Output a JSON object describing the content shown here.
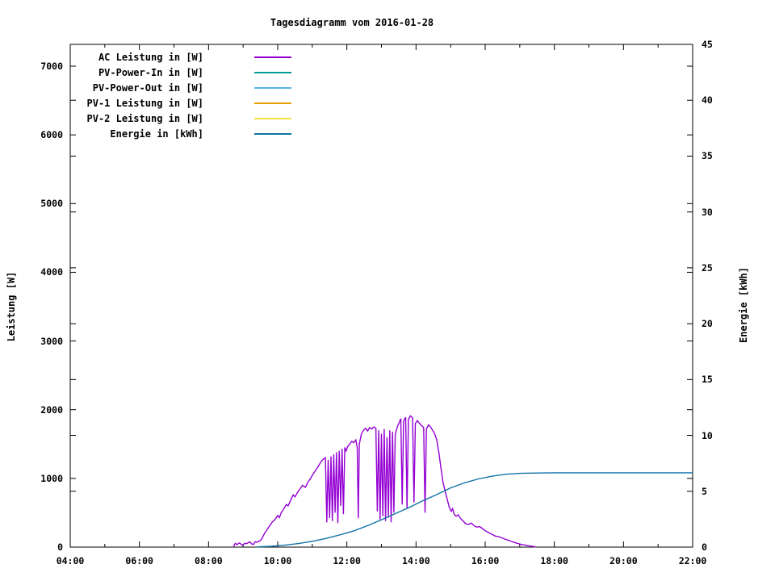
{
  "title": "Tagesdiagramm vom 2016-01-28",
  "chart_data": {
    "type": "line",
    "title": "Tagesdiagramm vom 2016-01-28",
    "background": "#ffffff",
    "grid": false,
    "legend_position": "top-left-inside",
    "x_axis": {
      "unit": "time",
      "range_hours": [
        4,
        22
      ],
      "major_ticks": [
        {
          "hour": 4,
          "label": "04:00"
        },
        {
          "hour": 6,
          "label": "06:00"
        },
        {
          "hour": 8,
          "label": "08:00"
        },
        {
          "hour": 10,
          "label": "10:00"
        },
        {
          "hour": 12,
          "label": "12:00"
        },
        {
          "hour": 14,
          "label": "14:00"
        },
        {
          "hour": 16,
          "label": "16:00"
        },
        {
          "hour": 18,
          "label": "18:00"
        },
        {
          "hour": 20,
          "label": "20:00"
        },
        {
          "hour": 22,
          "label": "22:00"
        }
      ],
      "minor_tick_hours": [
        5,
        7,
        9,
        11,
        13,
        15,
        17,
        19,
        21
      ]
    },
    "y_left": {
      "label": "Leistung [W]",
      "ticks": [
        0,
        1000,
        2000,
        3000,
        4000,
        5000,
        6000,
        7000
      ],
      "range": [
        0,
        7320
      ]
    },
    "y_right": {
      "label": "Energie [kWh]",
      "ticks": [
        0,
        5,
        10,
        15,
        20,
        25,
        30,
        35,
        40,
        45
      ],
      "range": [
        0,
        45
      ]
    },
    "legend": [
      {
        "name": "AC Leistung in [W]",
        "color": "#9400d3"
      },
      {
        "name": "PV-Power-In in [W]",
        "color": "#009e8e"
      },
      {
        "name": "PV-Power-Out in [W]",
        "color": "#56b4e9"
      },
      {
        "name": "PV-1 Leistung in [W]",
        "color": "#e69f00"
      },
      {
        "name": "PV-2 Leistung in [W]",
        "color": "#f0e442"
      },
      {
        "name": "Energie in [kWh]",
        "color": "#1173a8"
      }
    ],
    "series": [
      {
        "name": "AC Leistung in [W]",
        "color": "#9400d3",
        "axis": "left",
        "points": [
          [
            8.72,
            0
          ],
          [
            8.75,
            40
          ],
          [
            8.78,
            55
          ],
          [
            8.82,
            35
          ],
          [
            8.86,
            50
          ],
          [
            8.9,
            60
          ],
          [
            8.94,
            40
          ],
          [
            8.98,
            30
          ],
          [
            9.02,
            45
          ],
          [
            9.06,
            55
          ],
          [
            9.1,
            50
          ],
          [
            9.15,
            65
          ],
          [
            9.2,
            75
          ],
          [
            9.25,
            45
          ],
          [
            9.3,
            40
          ],
          [
            9.35,
            80
          ],
          [
            9.4,
            70
          ],
          [
            9.45,
            85
          ],
          [
            9.5,
            95
          ],
          [
            9.55,
            130
          ],
          [
            9.62,
            200
          ],
          [
            9.7,
            260
          ],
          [
            9.78,
            320
          ],
          [
            9.85,
            370
          ],
          [
            9.92,
            400
          ],
          [
            10.0,
            460
          ],
          [
            10.05,
            430
          ],
          [
            10.1,
            500
          ],
          [
            10.18,
            560
          ],
          [
            10.25,
            620
          ],
          [
            10.3,
            600
          ],
          [
            10.38,
            690
          ],
          [
            10.45,
            760
          ],
          [
            10.5,
            730
          ],
          [
            10.58,
            800
          ],
          [
            10.65,
            850
          ],
          [
            10.72,
            900
          ],
          [
            10.8,
            870
          ],
          [
            10.88,
            950
          ],
          [
            10.95,
            1000
          ],
          [
            11.02,
            1060
          ],
          [
            11.1,
            1120
          ],
          [
            11.18,
            1180
          ],
          [
            11.25,
            1240
          ],
          [
            11.32,
            1280
          ],
          [
            11.38,
            1300
          ],
          [
            11.42,
            360
          ],
          [
            11.46,
            1270
          ],
          [
            11.5,
            420
          ],
          [
            11.54,
            1320
          ],
          [
            11.58,
            380
          ],
          [
            11.62,
            1350
          ],
          [
            11.66,
            500
          ],
          [
            11.7,
            1380
          ],
          [
            11.74,
            350
          ],
          [
            11.78,
            1400
          ],
          [
            11.82,
            600
          ],
          [
            11.86,
            1430
          ],
          [
            11.9,
            480
          ],
          [
            11.94,
            1450
          ],
          [
            11.98,
            1400
          ],
          [
            12.02,
            1460
          ],
          [
            12.08,
            1500
          ],
          [
            12.14,
            1540
          ],
          [
            12.2,
            1520
          ],
          [
            12.26,
            1560
          ],
          [
            12.3,
            1450
          ],
          [
            12.33,
            420
          ],
          [
            12.36,
            1500
          ],
          [
            12.42,
            1650
          ],
          [
            12.48,
            1700
          ],
          [
            12.54,
            1730
          ],
          [
            12.6,
            1690
          ],
          [
            12.66,
            1740
          ],
          [
            12.72,
            1720
          ],
          [
            12.78,
            1750
          ],
          [
            12.84,
            1730
          ],
          [
            12.88,
            520
          ],
          [
            12.92,
            1700
          ],
          [
            12.96,
            400
          ],
          [
            13.0,
            1650
          ],
          [
            13.04,
            450
          ],
          [
            13.08,
            1720
          ],
          [
            13.12,
            380
          ],
          [
            13.16,
            1600
          ],
          [
            13.2,
            430
          ],
          [
            13.24,
            1700
          ],
          [
            13.28,
            360
          ],
          [
            13.32,
            1680
          ],
          [
            13.36,
            500
          ],
          [
            13.4,
            1640
          ],
          [
            13.46,
            1750
          ],
          [
            13.52,
            1820
          ],
          [
            13.56,
            1870
          ],
          [
            13.6,
            620
          ],
          [
            13.64,
            1830
          ],
          [
            13.7,
            1890
          ],
          [
            13.74,
            560
          ],
          [
            13.78,
            1860
          ],
          [
            13.84,
            1910
          ],
          [
            13.9,
            1880
          ],
          [
            13.94,
            650
          ],
          [
            13.98,
            1800
          ],
          [
            14.04,
            1840
          ],
          [
            14.1,
            1800
          ],
          [
            14.16,
            1770
          ],
          [
            14.22,
            1740
          ],
          [
            14.26,
            500
          ],
          [
            14.3,
            1720
          ],
          [
            14.36,
            1780
          ],
          [
            14.42,
            1750
          ],
          [
            14.48,
            1700
          ],
          [
            14.54,
            1650
          ],
          [
            14.6,
            1560
          ],
          [
            14.66,
            1380
          ],
          [
            14.72,
            1150
          ],
          [
            14.78,
            950
          ],
          [
            14.84,
            820
          ],
          [
            14.9,
            700
          ],
          [
            14.96,
            580
          ],
          [
            15.02,
            520
          ],
          [
            15.06,
            560
          ],
          [
            15.1,
            480
          ],
          [
            15.16,
            450
          ],
          [
            15.22,
            470
          ],
          [
            15.28,
            420
          ],
          [
            15.36,
            380
          ],
          [
            15.44,
            340
          ],
          [
            15.52,
            330
          ],
          [
            15.6,
            350
          ],
          [
            15.68,
            310
          ],
          [
            15.76,
            290
          ],
          [
            15.84,
            300
          ],
          [
            15.92,
            270
          ],
          [
            16.0,
            240
          ],
          [
            16.1,
            210
          ],
          [
            16.2,
            185
          ],
          [
            16.3,
            160
          ],
          [
            16.4,
            150
          ],
          [
            16.5,
            130
          ],
          [
            16.6,
            110
          ],
          [
            16.7,
            95
          ],
          [
            16.8,
            75
          ],
          [
            16.9,
            60
          ],
          [
            17.0,
            45
          ],
          [
            17.1,
            35
          ],
          [
            17.2,
            25
          ],
          [
            17.3,
            15
          ],
          [
            17.4,
            8
          ],
          [
            17.48,
            0
          ]
        ]
      },
      {
        "name": "PV-Power-In in [W]",
        "color": "#009e8e",
        "axis": "left",
        "points": []
      },
      {
        "name": "PV-Power-Out in [W]",
        "color": "#56b4e9",
        "axis": "left",
        "points": []
      },
      {
        "name": "PV-1 Leistung in [W]",
        "color": "#e69f00",
        "axis": "left",
        "points": []
      },
      {
        "name": "PV-2 Leistung in [W]",
        "color": "#f0e442",
        "axis": "left",
        "points": []
      },
      {
        "name": "Energie in [kWh]",
        "color": "#1173a8",
        "axis": "right",
        "points": [
          [
            9.4,
            0.02
          ],
          [
            9.8,
            0.07
          ],
          [
            10.2,
            0.17
          ],
          [
            10.6,
            0.32
          ],
          [
            11.0,
            0.52
          ],
          [
            11.4,
            0.78
          ],
          [
            11.8,
            1.1
          ],
          [
            12.2,
            1.45
          ],
          [
            12.6,
            1.92
          ],
          [
            13.0,
            2.45
          ],
          [
            13.4,
            3.0
          ],
          [
            13.8,
            3.55
          ],
          [
            14.2,
            4.15
          ],
          [
            14.6,
            4.7
          ],
          [
            15.0,
            5.3
          ],
          [
            15.4,
            5.75
          ],
          [
            15.8,
            6.1
          ],
          [
            16.2,
            6.35
          ],
          [
            16.6,
            6.52
          ],
          [
            17.0,
            6.6
          ],
          [
            17.5,
            6.63
          ],
          [
            18.0,
            6.65
          ],
          [
            19.0,
            6.65
          ],
          [
            20.0,
            6.65
          ],
          [
            21.0,
            6.65
          ],
          [
            22.0,
            6.65
          ]
        ]
      }
    ]
  }
}
